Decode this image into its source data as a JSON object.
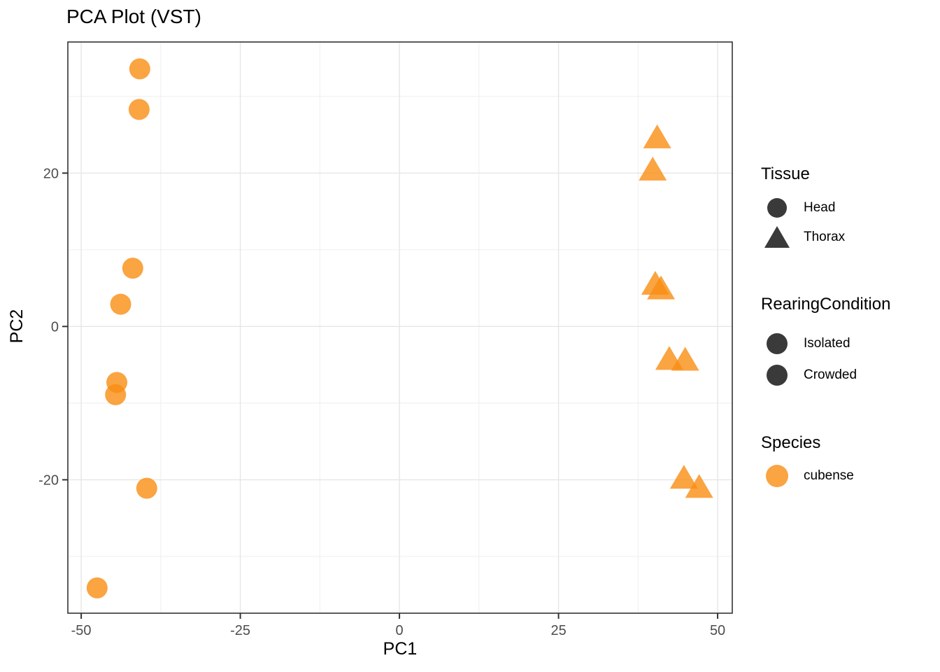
{
  "title": "PCA Plot (VST)",
  "chart_data": {
    "type": "scatter",
    "title": "PCA Plot (VST)",
    "xlabel": "PC1",
    "ylabel": "PC2",
    "xlim": [
      -52.1,
      52.3
    ],
    "ylim": [
      -37.4,
      37.1
    ],
    "x_ticks": [
      -50,
      -25,
      0,
      25,
      50
    ],
    "x_tick_labels": [
      "-50",
      "-25",
      "0",
      "25",
      "50"
    ],
    "y_ticks": [
      -20,
      0,
      20
    ],
    "y_tick_labels": [
      "-20",
      "0",
      "20"
    ],
    "x_minor_gridlines": [
      -37.5,
      -12.5,
      12.5,
      37.5
    ],
    "y_minor_gridlines": [
      -30,
      -10,
      10,
      30
    ],
    "grid": "on",
    "legend_position": "right",
    "point_color": "#F98D13",
    "point_alpha": 0.8,
    "series": [
      {
        "name": "Head",
        "shape": "circle",
        "points": [
          [
            -40.8,
            33.6
          ],
          [
            -40.9,
            28.3
          ],
          [
            -41.9,
            7.6
          ],
          [
            -43.8,
            2.9
          ],
          [
            -44.4,
            -7.3
          ],
          [
            -44.6,
            -8.9
          ],
          [
            -39.7,
            -21.1
          ],
          [
            -47.5,
            -34.1
          ]
        ]
      },
      {
        "name": "Thorax",
        "shape": "triangle",
        "points": [
          [
            40.5,
            24.7
          ],
          [
            39.8,
            20.5
          ],
          [
            40.2,
            5.6
          ],
          [
            41.1,
            5.0
          ],
          [
            42.4,
            -4.2
          ],
          [
            44.9,
            -4.3
          ],
          [
            44.7,
            -19.7
          ],
          [
            47.1,
            -20.9
          ]
        ]
      }
    ]
  },
  "legend": {
    "groups": [
      {
        "title": "Tissue",
        "items": [
          {
            "label": "Head",
            "shape": "circle",
            "color": "#3A3A3A"
          },
          {
            "label": "Thorax",
            "shape": "triangle",
            "color": "#3A3A3A"
          }
        ]
      },
      {
        "title": "RearingCondition",
        "items": [
          {
            "label": "Isolated",
            "shape": "circle",
            "color": "#3A3A3A"
          },
          {
            "label": "Crowded",
            "shape": "circle",
            "color": "#3A3A3A"
          }
        ]
      },
      {
        "title": "Species",
        "items": [
          {
            "label": "cubense",
            "shape": "circle",
            "color": "#FAA442"
          }
        ]
      }
    ]
  },
  "style": {
    "grid_major_color": "#E6E6E6",
    "grid_minor_color": "#EDEDED",
    "panel_border_color": "#333333",
    "tick_color": "#333333",
    "tick_label_color": "#4D4D4D"
  }
}
